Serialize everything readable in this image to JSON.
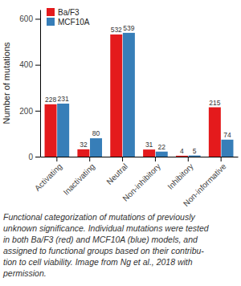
{
  "chart_data": {
    "type": "bar",
    "ylabel": "Number of mutations",
    "categories": [
      "Activating",
      "Inactivating",
      "Neutral",
      "Non-inhibitory",
      "Inhibitory",
      "Non-informative"
    ],
    "series": [
      {
        "name": "Ba/F3",
        "color": "#e41a1c",
        "values": [
          228,
          32,
          532,
          31,
          4,
          215
        ]
      },
      {
        "name": "MCF10A",
        "color": "#377eb8",
        "values": [
          231,
          80,
          539,
          22,
          5,
          74
        ]
      }
    ],
    "ylim": [
      0,
      640
    ],
    "yticks": [
      0,
      200,
      400,
      600
    ],
    "grid": false,
    "legend": "top-left",
    "data_labels": true
  },
  "caption": [
    "Functional categorization of mutations of previously",
    "unknown significance. Individual mutations were tested",
    "in both Ba/F3 (red) and MCF10A (blue) models, and",
    "assigned to functional groups based on their contribu-",
    "tion to cell viability. Image from Ng et al., 2018 with",
    "permission."
  ]
}
